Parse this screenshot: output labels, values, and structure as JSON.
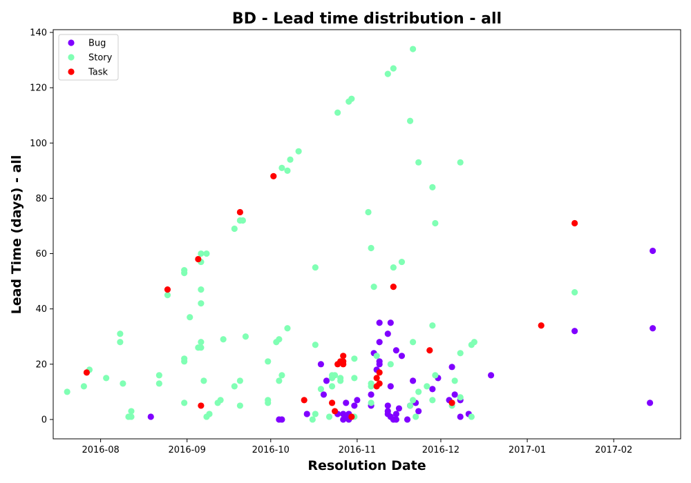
{
  "chart_data": {
    "type": "scatter",
    "title": "BD - Lead time distribution - all",
    "xlabel": "Resolution Date",
    "ylabel": "Lead Time (days) - all",
    "xlim": [
      "2016-07-15",
      "2017-02-25"
    ],
    "ylim": [
      -7,
      141
    ],
    "xticks": [
      "2016-08-01",
      "2016-09-01",
      "2016-10-01",
      "2016-11-01",
      "2016-12-01",
      "2017-01-01",
      "2017-02-01"
    ],
    "xtick_labels": [
      "2016-08",
      "2016-09",
      "2016-10",
      "2016-11",
      "2016-12",
      "2017-01",
      "2017-02"
    ],
    "yticks": [
      0,
      20,
      40,
      60,
      80,
      100,
      120,
      140
    ],
    "ytick_labels": [
      "0",
      "20",
      "40",
      "60",
      "80",
      "100",
      "120",
      "140"
    ],
    "grid": false,
    "legend_position": "top-left",
    "series": [
      {
        "name": "Bug",
        "color": "#8000ff",
        "points": [
          [
            "2016-08-19",
            1
          ],
          [
            "2016-10-04",
            0
          ],
          [
            "2016-10-05",
            0
          ],
          [
            "2016-10-14",
            2
          ],
          [
            "2016-10-19",
            20
          ],
          [
            "2016-10-20",
            9
          ],
          [
            "2016-10-21",
            14
          ],
          [
            "2016-10-25",
            2
          ],
          [
            "2016-10-27",
            2
          ],
          [
            "2016-10-27",
            0
          ],
          [
            "2016-10-28",
            6
          ],
          [
            "2016-10-28",
            1
          ],
          [
            "2016-10-29",
            2
          ],
          [
            "2016-10-29",
            0
          ],
          [
            "2016-10-31",
            5
          ],
          [
            "2016-11-01",
            7
          ],
          [
            "2016-11-06",
            5
          ],
          [
            "2016-11-06",
            9
          ],
          [
            "2016-11-07",
            24
          ],
          [
            "2016-11-08",
            18
          ],
          [
            "2016-11-09",
            28
          ],
          [
            "2016-11-09",
            35
          ],
          [
            "2016-11-09",
            21
          ],
          [
            "2016-11-09",
            20
          ],
          [
            "2016-11-12",
            31
          ],
          [
            "2016-11-12",
            5
          ],
          [
            "2016-11-12",
            3
          ],
          [
            "2016-11-12",
            2
          ],
          [
            "2016-11-13",
            35
          ],
          [
            "2016-11-13",
            12
          ],
          [
            "2016-11-13",
            1
          ],
          [
            "2016-11-14",
            0
          ],
          [
            "2016-11-15",
            0
          ],
          [
            "2016-11-15",
            2
          ],
          [
            "2016-11-15",
            25
          ],
          [
            "2016-11-16",
            4
          ],
          [
            "2016-11-17",
            23
          ],
          [
            "2016-11-19",
            0
          ],
          [
            "2016-11-20",
            5
          ],
          [
            "2016-11-21",
            14
          ],
          [
            "2016-11-22",
            6
          ],
          [
            "2016-11-23",
            3
          ],
          [
            "2016-11-28",
            11
          ],
          [
            "2016-11-30",
            15
          ],
          [
            "2016-12-04",
            7
          ],
          [
            "2016-12-05",
            19
          ],
          [
            "2016-12-06",
            9
          ],
          [
            "2016-12-08",
            7
          ],
          [
            "2016-12-08",
            1
          ],
          [
            "2016-12-11",
            2
          ],
          [
            "2016-12-19",
            16
          ],
          [
            "2017-01-18",
            32
          ],
          [
            "2017-02-14",
            6
          ],
          [
            "2017-02-15",
            33
          ],
          [
            "2017-02-15",
            61
          ]
        ]
      },
      {
        "name": "Story",
        "color": "#80ffb4",
        "points": [
          [
            "2016-07-20",
            10
          ],
          [
            "2016-07-26",
            12
          ],
          [
            "2016-07-28",
            18
          ],
          [
            "2016-08-03",
            15
          ],
          [
            "2016-08-08",
            31
          ],
          [
            "2016-08-08",
            28
          ],
          [
            "2016-08-09",
            13
          ],
          [
            "2016-08-11",
            1
          ],
          [
            "2016-08-12",
            1
          ],
          [
            "2016-08-12",
            3
          ],
          [
            "2016-08-22",
            16
          ],
          [
            "2016-08-22",
            13
          ],
          [
            "2016-08-25",
            45
          ],
          [
            "2016-08-31",
            54
          ],
          [
            "2016-08-31",
            53
          ],
          [
            "2016-08-31",
            22
          ],
          [
            "2016-08-31",
            21
          ],
          [
            "2016-08-31",
            6
          ],
          [
            "2016-09-02",
            37
          ],
          [
            "2016-09-05",
            26
          ],
          [
            "2016-09-06",
            60
          ],
          [
            "2016-09-06",
            57
          ],
          [
            "2016-09-06",
            47
          ],
          [
            "2016-09-06",
            42
          ],
          [
            "2016-09-06",
            28
          ],
          [
            "2016-09-06",
            26
          ],
          [
            "2016-09-07",
            14
          ],
          [
            "2016-09-08",
            60
          ],
          [
            "2016-09-08",
            1
          ],
          [
            "2016-09-09",
            2
          ],
          [
            "2016-09-12",
            6
          ],
          [
            "2016-09-13",
            7
          ],
          [
            "2016-09-14",
            29
          ],
          [
            "2016-09-18",
            69
          ],
          [
            "2016-09-18",
            12
          ],
          [
            "2016-09-20",
            72
          ],
          [
            "2016-09-20",
            14
          ],
          [
            "2016-09-20",
            5
          ],
          [
            "2016-09-21",
            72
          ],
          [
            "2016-09-22",
            30
          ],
          [
            "2016-09-30",
            21
          ],
          [
            "2016-09-30",
            7
          ],
          [
            "2016-09-30",
            6
          ],
          [
            "2016-10-03",
            28
          ],
          [
            "2016-10-04",
            29
          ],
          [
            "2016-10-04",
            14
          ],
          [
            "2016-10-05",
            91
          ],
          [
            "2016-10-05",
            16
          ],
          [
            "2016-10-07",
            90
          ],
          [
            "2016-10-07",
            33
          ],
          [
            "2016-10-08",
            94
          ],
          [
            "2016-10-11",
            97
          ],
          [
            "2016-10-16",
            0
          ],
          [
            "2016-10-17",
            55
          ],
          [
            "2016-10-17",
            27
          ],
          [
            "2016-10-17",
            2
          ],
          [
            "2016-10-19",
            11
          ],
          [
            "2016-10-22",
            1
          ],
          [
            "2016-10-23",
            16
          ],
          [
            "2016-10-23",
            15
          ],
          [
            "2016-10-23",
            12
          ],
          [
            "2016-10-24",
            16
          ],
          [
            "2016-10-25",
            111
          ],
          [
            "2016-10-26",
            15
          ],
          [
            "2016-10-26",
            14
          ],
          [
            "2016-10-29",
            115
          ],
          [
            "2016-10-30",
            116
          ],
          [
            "2016-10-31",
            22
          ],
          [
            "2016-10-31",
            15
          ],
          [
            "2016-10-31",
            1
          ],
          [
            "2016-11-05",
            75
          ],
          [
            "2016-11-06",
            62
          ],
          [
            "2016-11-06",
            13
          ],
          [
            "2016-11-06",
            12
          ],
          [
            "2016-11-06",
            6
          ],
          [
            "2016-11-07",
            48
          ],
          [
            "2016-11-08",
            23
          ],
          [
            "2016-11-12",
            125
          ],
          [
            "2016-11-13",
            20
          ],
          [
            "2016-11-14",
            127
          ],
          [
            "2016-11-14",
            55
          ],
          [
            "2016-11-17",
            57
          ],
          [
            "2016-11-20",
            108
          ],
          [
            "2016-11-20",
            5
          ],
          [
            "2016-11-21",
            134
          ],
          [
            "2016-11-21",
            28
          ],
          [
            "2016-11-21",
            7
          ],
          [
            "2016-11-22",
            1
          ],
          [
            "2016-11-23",
            93
          ],
          [
            "2016-11-23",
            10
          ],
          [
            "2016-11-26",
            12
          ],
          [
            "2016-11-28",
            84
          ],
          [
            "2016-11-28",
            34
          ],
          [
            "2016-11-28",
            7
          ],
          [
            "2016-11-29",
            71
          ],
          [
            "2016-11-29",
            16
          ],
          [
            "2016-12-05",
            5
          ],
          [
            "2016-12-06",
            14
          ],
          [
            "2016-12-08",
            93
          ],
          [
            "2016-12-08",
            24
          ],
          [
            "2016-12-08",
            8
          ],
          [
            "2016-12-12",
            27
          ],
          [
            "2016-12-12",
            1
          ],
          [
            "2016-12-13",
            28
          ],
          [
            "2017-01-18",
            46
          ]
        ]
      },
      {
        "name": "Task",
        "color": "#ff0000",
        "points": [
          [
            "2016-07-27",
            17
          ],
          [
            "2016-08-25",
            47
          ],
          [
            "2016-09-05",
            58
          ],
          [
            "2016-09-06",
            5
          ],
          [
            "2016-09-20",
            75
          ],
          [
            "2016-10-02",
            88
          ],
          [
            "2016-10-13",
            7
          ],
          [
            "2016-10-23",
            6
          ],
          [
            "2016-10-24",
            3
          ],
          [
            "2016-10-25",
            20
          ],
          [
            "2016-10-26",
            21
          ],
          [
            "2016-10-27",
            21
          ],
          [
            "2016-10-27",
            20
          ],
          [
            "2016-10-27",
            23
          ],
          [
            "2016-10-30",
            1
          ],
          [
            "2016-11-08",
            15
          ],
          [
            "2016-11-08",
            12
          ],
          [
            "2016-11-09",
            17
          ],
          [
            "2016-11-09",
            13
          ],
          [
            "2016-11-14",
            48
          ],
          [
            "2016-11-27",
            25
          ],
          [
            "2016-12-05",
            6
          ],
          [
            "2017-01-06",
            34
          ],
          [
            "2017-01-18",
            71
          ]
        ]
      }
    ]
  }
}
